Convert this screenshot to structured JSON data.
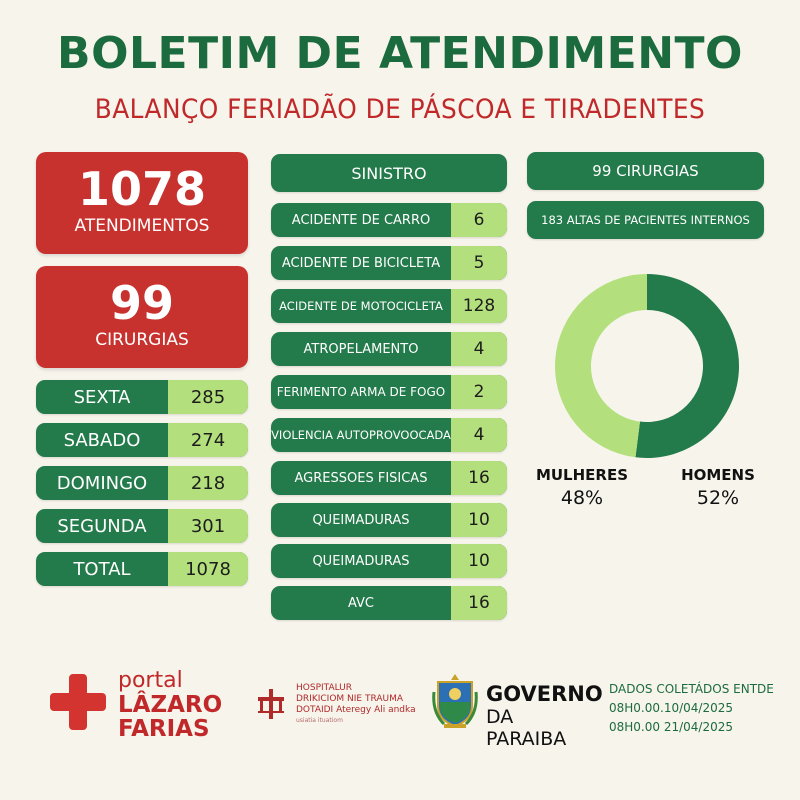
{
  "header": {
    "title": "BOLETIM DE ATENDIMENTO",
    "subtitle": "BALANÇO FERIADÃO DE PÁSCOA E TIRADENTES"
  },
  "summary": {
    "atendimentos_value": "1078",
    "atendimentos_label": "ATENDIMENTOS",
    "cirurgias_value": "99",
    "cirurgias_label": "CIRURGIAS"
  },
  "days": [
    {
      "label": "SEXTA",
      "value": "285"
    },
    {
      "label": "SABADO",
      "value": "274"
    },
    {
      "label": "DOMINGO",
      "value": "218"
    },
    {
      "label": "SEGUNDA",
      "value": "301"
    },
    {
      "label": "TOTAL",
      "value": "1078"
    }
  ],
  "sinistro": {
    "header": "SINISTRO",
    "items": [
      {
        "label": "ACIDENTE DE CARRO",
        "value": "6"
      },
      {
        "label": "ACIDENTE DE BICICLETA",
        "value": "5"
      },
      {
        "label": "ACIDENTE DE MOTOCICLETA",
        "value": "128"
      },
      {
        "label": "ATROPELAMENTO",
        "value": "4"
      },
      {
        "label": "FERIMENTO ARMA DE FOGO",
        "value": "2"
      },
      {
        "label": "VIOLENCIA AUTOPROVOOCADA",
        "value": "4"
      },
      {
        "label": "AGRESSOES FISICAS",
        "value": "16"
      },
      {
        "label": "QUEIMADURAS",
        "value": "10"
      },
      {
        "label": "QUEIMADURAS",
        "value": "10"
      },
      {
        "label": "AVC",
        "value": "16"
      }
    ]
  },
  "right": {
    "cirurgias_badge": "99 CIRURGIAS",
    "altas_badge": "183 ALTAS DE PACIENTES INTERNOS"
  },
  "chart_data": {
    "type": "pie",
    "donut": true,
    "categories": [
      "HOMENS",
      "MULHERES"
    ],
    "values": [
      52,
      48
    ],
    "value_labels": [
      "52%",
      "48%"
    ],
    "colors": [
      "#237a4a",
      "#b3e07c"
    ]
  },
  "colors": {
    "green_dark": "#237a4a",
    "green_light": "#b3e07c",
    "red": "#c8322e",
    "title_green": "#1c6b3e",
    "subtitle_red": "#c0282a"
  },
  "footer": {
    "portal": {
      "line1": "portal",
      "line2": "LÂZARO",
      "line3": "FARIAS"
    },
    "hospital": {
      "line1": "HOSPITALUR",
      "line2": "DRIKICIOM NIE TRAUMA",
      "line3": "DOTAIDI Ateregy Ali andka",
      "line4": "usiatia ituatiom"
    },
    "governo": {
      "line1": "GOVERNO",
      "line2": "DA PARAIBA"
    },
    "dados": {
      "line1": "DADOS COLETÁDOS ENTDE",
      "line2": "08H0.00.10/04/2025",
      "line3": "08H0.00 21/04/2025"
    }
  }
}
